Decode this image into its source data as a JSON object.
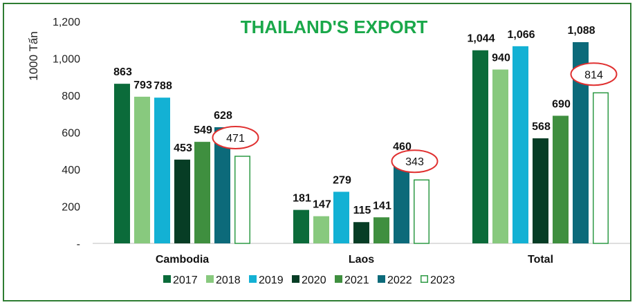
{
  "chart_data": {
    "type": "bar",
    "title": "THAILAND'S EXPORT",
    "ylabel": "1000 Tấn",
    "xlabel": "",
    "ylim": [
      0,
      1200
    ],
    "yticks": [
      "-",
      "200",
      "400",
      "600",
      "800",
      "1,000",
      "1,200"
    ],
    "categories": [
      "Cambodia",
      "Laos",
      "Total"
    ],
    "series": [
      {
        "name": "2017",
        "color": "#0b6b3a",
        "values": [
          863,
          181,
          1044
        ],
        "labels": [
          "863",
          "181",
          "1,044"
        ]
      },
      {
        "name": "2018",
        "color": "#88c97e",
        "values": [
          793,
          147,
          940
        ],
        "labels": [
          "793",
          "147",
          "940"
        ]
      },
      {
        "name": "2019",
        "color": "#13b1d4",
        "values": [
          788,
          279,
          1066
        ],
        "labels": [
          "788",
          "279",
          "1,066"
        ]
      },
      {
        "name": "2020",
        "color": "#073d25",
        "values": [
          453,
          115,
          568
        ],
        "labels": [
          "453",
          "115",
          "568"
        ]
      },
      {
        "name": "2021",
        "color": "#3f8f3f",
        "values": [
          549,
          141,
          690
        ],
        "labels": [
          "549",
          "141",
          "690"
        ]
      },
      {
        "name": "2022",
        "color": "#0c6a7a",
        "values": [
          628,
          460,
          1088
        ],
        "labels": [
          "628",
          "460",
          "1,088"
        ]
      },
      {
        "name": "2023",
        "color": "#2e9a45",
        "outline": true,
        "values": [
          471,
          343,
          814
        ],
        "labels": [
          "471",
          "343",
          "814"
        ]
      }
    ],
    "highlight_color": "#e03030",
    "title_color": "#1aa84a",
    "grid": false,
    "legend_position": "bottom"
  }
}
